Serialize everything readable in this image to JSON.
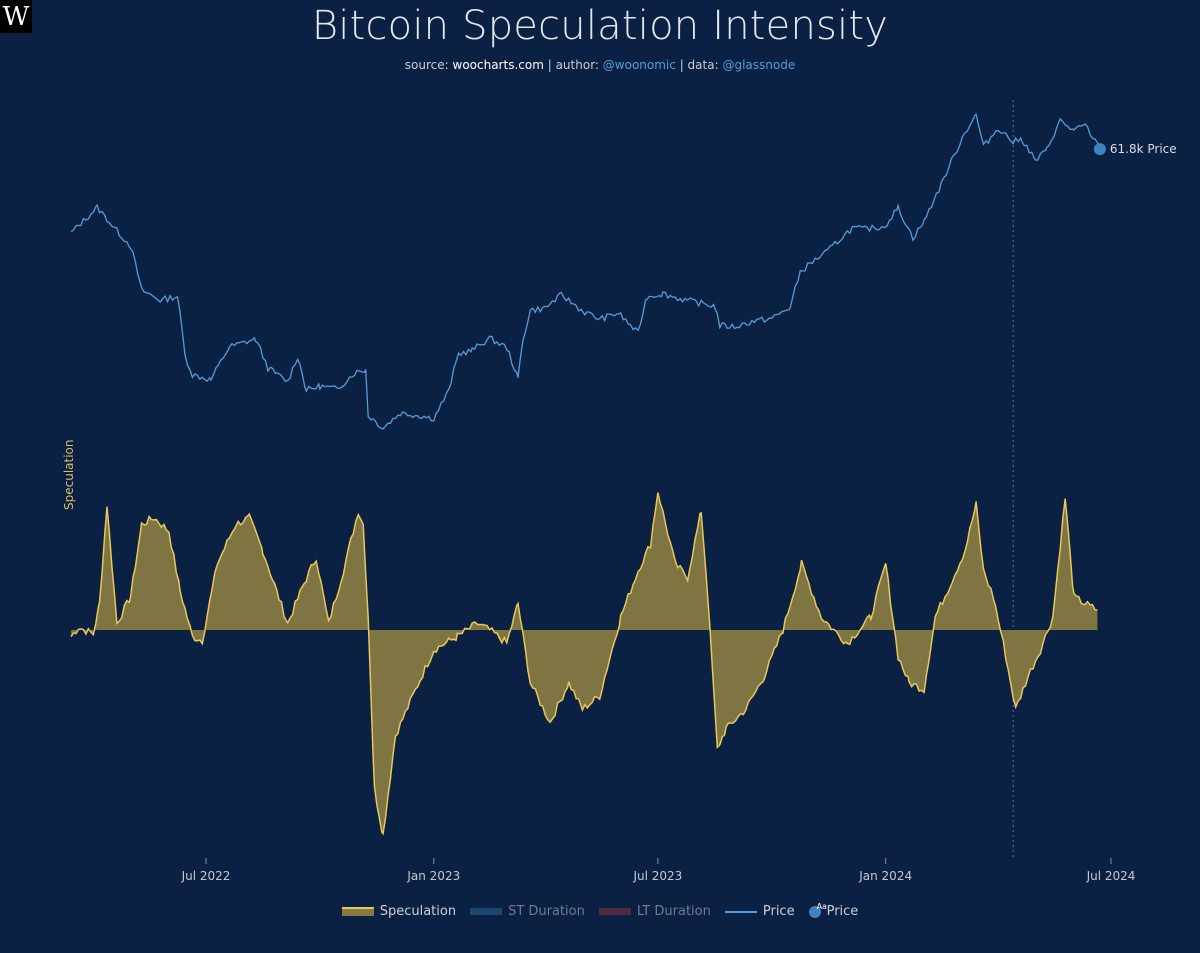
{
  "logo": "W",
  "header": {
    "title": "Bitcoin Speculation Intensity",
    "source_prefix": "source:",
    "source_site": "woocharts.com",
    "author_prefix": "| author:",
    "author": "@woonomic",
    "data_prefix": "| data:",
    "data_source": "@glassnode"
  },
  "chart_data": {
    "type": "line",
    "title": "Bitcoin Speculation Intensity",
    "ylabel": "Speculation",
    "x_ticks": [
      "Jul 2022",
      "Jan 2023",
      "Jul 2023",
      "Jan 2024",
      "Jul 2024"
    ],
    "grid": false,
    "legend_position": "bottom",
    "price_label": "61.8k Price",
    "price_series": {
      "name": "Price",
      "scale": "log",
      "x": [
        "2022-03-14",
        "2022-03-28",
        "2022-04-04",
        "2022-04-18",
        "2022-05-01",
        "2022-05-10",
        "2022-05-25",
        "2022-06-08",
        "2022-06-14",
        "2022-06-20",
        "2022-07-05",
        "2022-07-20",
        "2022-08-10",
        "2022-08-20",
        "2022-09-05",
        "2022-09-13",
        "2022-09-20",
        "2022-10-01",
        "2022-10-15",
        "2022-10-29",
        "2022-11-07",
        "2022-11-09",
        "2022-11-21",
        "2022-12-05",
        "2022-12-20",
        "2023-01-01",
        "2023-01-13",
        "2023-01-21",
        "2023-02-01",
        "2023-02-15",
        "2023-03-01",
        "2023-03-10",
        "2023-03-14",
        "2023-03-20",
        "2023-04-01",
        "2023-04-14",
        "2023-05-01",
        "2023-05-15",
        "2023-05-30",
        "2023-06-15",
        "2023-06-22",
        "2023-07-05",
        "2023-07-15",
        "2023-08-01",
        "2023-08-16",
        "2023-08-20",
        "2023-09-01",
        "2023-09-15",
        "2023-10-01",
        "2023-10-16",
        "2023-10-24",
        "2023-11-01",
        "2023-11-15",
        "2023-12-05",
        "2023-12-15",
        "2023-12-31",
        "2024-01-11",
        "2024-01-23",
        "2024-02-01",
        "2024-02-15",
        "2024-02-28",
        "2024-03-05",
        "2024-03-14",
        "2024-03-20",
        "2024-04-01",
        "2024-04-13",
        "2024-04-20",
        "2024-05-01",
        "2024-05-10",
        "2024-05-21",
        "2024-06-01",
        "2024-06-10",
        "2024-06-22"
      ],
      "values": [
        41000,
        44500,
        46500,
        42000,
        38500,
        31000,
        29500,
        30100,
        22500,
        20500,
        20000,
        23500,
        24400,
        21200,
        19800,
        22400,
        19000,
        19400,
        19100,
        20700,
        21000,
        16800,
        15800,
        17000,
        16800,
        16550,
        18900,
        22700,
        23100,
        24500,
        23400,
        20100,
        24300,
        28100,
        28400,
        30300,
        28000,
        26900,
        27700,
        25100,
        30000,
        30500,
        29900,
        29200,
        28700,
        26100,
        25900,
        26600,
        27000,
        28500,
        33900,
        35300,
        37500,
        42000,
        41800,
        42300,
        46300,
        40000,
        43300,
        52000,
        62000,
        67000,
        73000,
        62500,
        68500,
        64000,
        64900,
        58300,
        61500,
        71000,
        67500,
        69500,
        61800
      ]
    },
    "speculation_series": {
      "name": "Speculation",
      "x": [
        "2022-03-14",
        "2022-03-20",
        "2022-04-01",
        "2022-04-06",
        "2022-04-12",
        "2022-04-20",
        "2022-05-01",
        "2022-05-10",
        "2022-05-20",
        "2022-06-01",
        "2022-06-10",
        "2022-06-20",
        "2022-06-28",
        "2022-07-10",
        "2022-07-25",
        "2022-08-05",
        "2022-08-16",
        "2022-08-25",
        "2022-09-05",
        "2022-09-18",
        "2022-09-28",
        "2022-10-08",
        "2022-10-20",
        "2022-11-01",
        "2022-11-05",
        "2022-11-09",
        "2022-11-14",
        "2022-11-21",
        "2022-12-01",
        "2022-12-15",
        "2023-01-01",
        "2023-01-20",
        "2023-02-05",
        "2023-02-15",
        "2023-03-01",
        "2023-03-10",
        "2023-03-20",
        "2023-04-05",
        "2023-04-20",
        "2023-05-01",
        "2023-05-15",
        "2023-06-01",
        "2023-06-15",
        "2023-06-25",
        "2023-07-01",
        "2023-07-15",
        "2023-07-25",
        "2023-08-05",
        "2023-08-10",
        "2023-08-18",
        "2023-08-25",
        "2023-09-10",
        "2023-09-25",
        "2023-10-10",
        "2023-10-25",
        "2023-11-10",
        "2023-11-20",
        "2023-12-01",
        "2023-12-20",
        "2024-01-01",
        "2024-01-11",
        "2024-01-20",
        "2024-02-01",
        "2024-02-10",
        "2024-02-20",
        "2024-03-05",
        "2024-03-14",
        "2024-03-20",
        "2024-03-28",
        "2024-04-05",
        "2024-04-15",
        "2024-04-25",
        "2024-05-05",
        "2024-05-15",
        "2024-05-25",
        "2024-06-01",
        "2024-06-10",
        "2024-06-20"
      ],
      "values": [
        -0.05,
        0.02,
        -0.03,
        0.2,
        0.95,
        0.05,
        0.25,
        0.8,
        0.85,
        0.75,
        0.3,
        -0.05,
        -0.08,
        0.5,
        0.8,
        0.85,
        0.6,
        0.35,
        0.05,
        0.35,
        0.55,
        0.05,
        0.45,
        0.9,
        0.8,
        0.1,
        -1.2,
        -1.55,
        -0.8,
        -0.5,
        -0.15,
        -0.05,
        0.05,
        0.0,
        -0.1,
        0.2,
        -0.4,
        -0.7,
        -0.4,
        -0.6,
        -0.5,
        0.1,
        0.45,
        0.65,
        1.05,
        0.5,
        0.4,
        0.9,
        0.3,
        -0.9,
        -0.75,
        -0.6,
        -0.35,
        0.0,
        0.5,
        0.1,
        0.0,
        -0.1,
        0.1,
        0.5,
        -0.2,
        -0.4,
        -0.45,
        0.1,
        0.3,
        0.6,
        0.95,
        0.45,
        0.25,
        -0.1,
        -0.6,
        -0.35,
        -0.15,
        0.1,
        1.0,
        0.25,
        0.2,
        0.15
      ]
    },
    "legend": [
      {
        "name": "Speculation",
        "color": "#e8c85a"
      },
      {
        "name": "ST Duration",
        "color": "#1c466e"
      },
      {
        "name": "LT Duration",
        "color": "#4e2a44"
      },
      {
        "name": "Price",
        "color": "#5b9bd5"
      },
      {
        "name": "Price",
        "color": "#3f84c2",
        "marker": "Aa"
      }
    ]
  }
}
